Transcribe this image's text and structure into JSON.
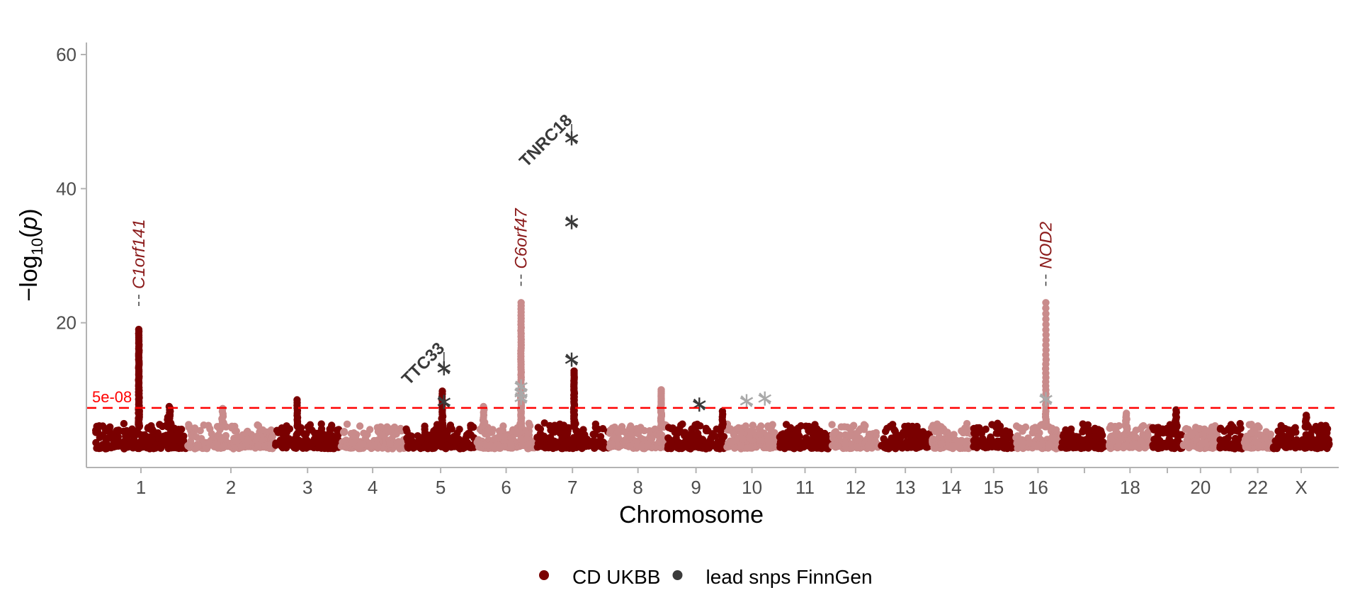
{
  "chart_data": {
    "type": "scatter",
    "title": "",
    "xlabel": "Chromosome",
    "ylabel": "-log10(p)",
    "ylim": [
      0,
      60
    ],
    "yticks": [
      20,
      40,
      60
    ],
    "grid": false,
    "legend_position": "bottom",
    "colors": {
      "dark": "#7a0000",
      "light": "#c98b8b",
      "threshold": "#ff0000",
      "lead": "#3a3a3a",
      "lead_faint": "#a9a9a9"
    },
    "chromosomes": [
      {
        "label": "1",
        "start": 0,
        "end": 111
      },
      {
        "label": "2",
        "start": 111,
        "end": 217
      },
      {
        "label": "3",
        "start": 217,
        "end": 296
      },
      {
        "label": "4",
        "start": 296,
        "end": 374
      },
      {
        "label": "5",
        "start": 374,
        "end": 460
      },
      {
        "label": "6",
        "start": 460,
        "end": 532
      },
      {
        "label": "7",
        "start": 532,
        "end": 620
      },
      {
        "label": "8",
        "start": 620,
        "end": 690
      },
      {
        "label": "9",
        "start": 690,
        "end": 760
      },
      {
        "label": "10",
        "start": 760,
        "end": 825
      },
      {
        "label": "11",
        "start": 825,
        "end": 888
      },
      {
        "label": "12",
        "start": 888,
        "end": 947
      },
      {
        "label": "13",
        "start": 947,
        "end": 1008
      },
      {
        "label": "14",
        "start": 1008,
        "end": 1058
      },
      {
        "label": "15",
        "start": 1058,
        "end": 1110
      },
      {
        "label": "16",
        "start": 1110,
        "end": 1165
      },
      {
        "label": "",
        "start": 1165,
        "end": 1222
      },
      {
        "label": "18",
        "start": 1222,
        "end": 1275
      },
      {
        "label": "",
        "start": 1275,
        "end": 1312
      },
      {
        "label": "20",
        "start": 1312,
        "end": 1355
      },
      {
        "label": "",
        "start": 1355,
        "end": 1385
      },
      {
        "label": "22",
        "start": 1385,
        "end": 1420
      },
      {
        "label": "X",
        "start": 1420,
        "end": 1490
      }
    ],
    "peaks": [
      {
        "x": 53,
        "max": 19.0,
        "width": 1.5,
        "n": 70
      },
      {
        "x": 90,
        "max": 7.5,
        "width": 8,
        "n": 18
      },
      {
        "x": 154,
        "max": 7.2,
        "width": 4,
        "n": 10
      },
      {
        "x": 244,
        "max": 8.5,
        "width": 1.5,
        "n": 14
      },
      {
        "x": 419,
        "max": 9.8,
        "width": 2,
        "n": 18
      },
      {
        "x": 469,
        "max": 7.5,
        "width": 3,
        "n": 10
      },
      {
        "x": 514,
        "max": 23.0,
        "width": 1.2,
        "n": 55
      },
      {
        "x": 578,
        "max": 12.8,
        "width": 1.5,
        "n": 40
      },
      {
        "x": 683,
        "max": 10.0,
        "width": 1.5,
        "n": 30
      },
      {
        "x": 757,
        "max": 6.8,
        "width": 2,
        "n": 8
      },
      {
        "x": 1147,
        "max": 23.0,
        "width": 1.0,
        "n": 32
      },
      {
        "x": 1244,
        "max": 6.5,
        "width": 3,
        "n": 10
      },
      {
        "x": 1304,
        "max": 7.0,
        "width": 3,
        "n": 10
      },
      {
        "x": 1461,
        "max": 6.2,
        "width": 3,
        "n": 8
      }
    ],
    "lead_snps": [
      {
        "x": 421,
        "y": 13.2,
        "tone": "dark"
      },
      {
        "x": 421,
        "y": 8.2,
        "tone": "dark"
      },
      {
        "x": 514,
        "y": 10.5,
        "tone": "faint"
      },
      {
        "x": 514,
        "y": 9.5,
        "tone": "faint"
      },
      {
        "x": 514,
        "y": 8.8,
        "tone": "faint"
      },
      {
        "x": 575,
        "y": 47.5,
        "tone": "dark"
      },
      {
        "x": 575,
        "y": 35.0,
        "tone": "dark"
      },
      {
        "x": 575,
        "y": 14.5,
        "tone": "dark"
      },
      {
        "x": 729,
        "y": 7.8,
        "tone": "dark"
      },
      {
        "x": 786,
        "y": 8.3,
        "tone": "faint"
      },
      {
        "x": 808,
        "y": 8.7,
        "tone": "faint"
      },
      {
        "x": 1147,
        "y": 8.6,
        "tone": "faint"
      }
    ],
    "threshold": {
      "y": 7.3,
      "label": "5e-08"
    },
    "annotations": [
      {
        "label": "C1orf141",
        "x": 53,
        "y": 22.5,
        "style": "italic"
      },
      {
        "label": "C6orf47",
        "x": 514,
        "y": 25.5,
        "style": "italic"
      },
      {
        "label": "NOD2",
        "x": 1147,
        "y": 25.5,
        "style": "italic"
      },
      {
        "label": "TTC33",
        "x": 421,
        "y": 15.0,
        "style": "bold"
      },
      {
        "label": "TNRC18",
        "x": 575,
        "y": 49.0,
        "style": "bold"
      }
    ],
    "legend": [
      {
        "label": "CD UKBB",
        "color": "#7a0000",
        "shape": "circle"
      },
      {
        "label": "lead snps FinnGen",
        "color": "#3a3a3a",
        "shape": "circle"
      }
    ]
  }
}
